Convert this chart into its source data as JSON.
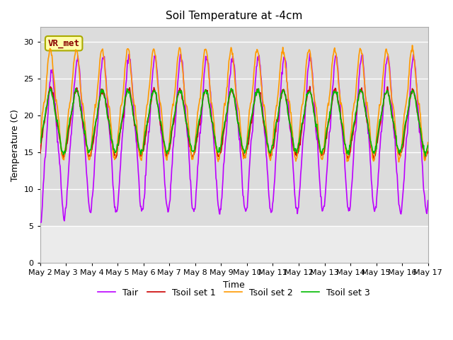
{
  "title": "Soil Temperature at -4cm",
  "xlabel": "Time",
  "ylabel": "Temperature (C)",
  "ylim": [
    0,
    32
  ],
  "yticks": [
    0,
    5,
    10,
    15,
    20,
    25,
    30
  ],
  "plot_bg_color": "#dcdcdc",
  "fig_bg_color": "#ffffff",
  "grid_color": "#ffffff",
  "series": {
    "Tair": {
      "color": "#bb00ff",
      "linewidth": 1.2
    },
    "Tsoil set 1": {
      "color": "#cc0000",
      "linewidth": 1.2
    },
    "Tsoil set 2": {
      "color": "#ff9900",
      "linewidth": 1.2
    },
    "Tsoil set 3": {
      "color": "#00bb00",
      "linewidth": 1.2
    }
  },
  "annotation": {
    "text": "VR_met",
    "fontsize": 9,
    "color": "#880000",
    "boxstyle": "round,pad=0.3",
    "facecolor": "#ffffaa",
    "edgecolor": "#aaaa00",
    "linewidth": 1.5
  },
  "n_days": 15,
  "xtick_labels": [
    "May 2",
    "May 3",
    "May 4",
    "May 5",
    "May 6",
    "May 7",
    "May 8",
    "May 9",
    "May 10",
    "May 11",
    "May 12",
    "May 13",
    "May 14",
    "May 15",
    "May 16",
    "May 17"
  ]
}
